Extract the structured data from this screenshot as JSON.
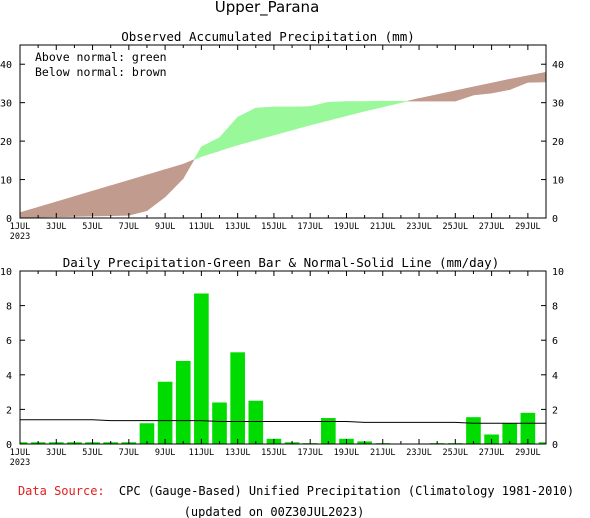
{
  "title": "Upper_Parana",
  "x_tick_labels": [
    "1JUL",
    "3JUL",
    "5JUL",
    "7JUL",
    "9JUL",
    "11JUL",
    "13JUL",
    "15JUL",
    "17JUL",
    "19JUL",
    "21JUL",
    "23JUL",
    "25JUL",
    "27JUL",
    "29JUL"
  ],
  "x_year_label": "2023",
  "colors": {
    "above": "#99f899",
    "below": "#c19b8e",
    "bar": "#00dc00",
    "line": "#000000",
    "source_label": "#e02020"
  },
  "footer": {
    "source_label": "Data Source:",
    "source_text": "CPC (Gauge-Based) Unified Precipitation (Climatology 1981-2010)",
    "updated": "(updated on 00Z30JUL2023)"
  },
  "chart_data": [
    {
      "type": "area",
      "title": "Observed Accumulated Precipitation (mm)",
      "legend": [
        "Above normal: green",
        "Below normal: brown"
      ],
      "ylim": [
        0,
        45
      ],
      "yticks": [
        0,
        10,
        20,
        30,
        40
      ],
      "x": [
        "1JUL",
        "2JUL",
        "3JUL",
        "4JUL",
        "5JUL",
        "6JUL",
        "7JUL",
        "8JUL",
        "9JUL",
        "10JUL",
        "11JUL",
        "12JUL",
        "13JUL",
        "14JUL",
        "15JUL",
        "16JUL",
        "17JUL",
        "18JUL",
        "19JUL",
        "20JUL",
        "21JUL",
        "22JUL",
        "23JUL",
        "24JUL",
        "25JUL",
        "26JUL",
        "27JUL",
        "28JUL",
        "29JUL",
        "30JUL"
      ],
      "series": [
        {
          "name": "Observed",
          "values": [
            0.1,
            0.2,
            0.3,
            0.4,
            0.5,
            0.6,
            0.7,
            1.9,
            5.5,
            10.3,
            18.5,
            20.9,
            26.2,
            28.6,
            28.9,
            28.9,
            29.0,
            30.1,
            30.3,
            30.3,
            30.4,
            30.4,
            30.4,
            30.4,
            30.4,
            32.0,
            32.5,
            33.4,
            35.3,
            35.4
          ]
        },
        {
          "name": "Normal",
          "values": [
            1.4,
            2.8,
            4.2,
            5.6,
            7.0,
            8.4,
            9.8,
            11.2,
            12.6,
            14.0,
            16.0,
            17.5,
            19.0,
            20.3,
            21.6,
            22.9,
            24.2,
            25.4,
            26.6,
            27.8,
            28.9,
            30.0,
            31.1,
            32.1,
            33.1,
            34.1,
            35.1,
            36.1,
            37.0,
            37.9
          ]
        }
      ]
    },
    {
      "type": "bar",
      "title": "Daily Precipitation-Green Bar & Normal-Solid Line (mm/day)",
      "ylim": [
        0,
        10
      ],
      "yticks": [
        0,
        2,
        4,
        6,
        8,
        10
      ],
      "x": [
        "1JUL",
        "2JUL",
        "3JUL",
        "4JUL",
        "5JUL",
        "6JUL",
        "7JUL",
        "8JUL",
        "9JUL",
        "10JUL",
        "11JUL",
        "12JUL",
        "13JUL",
        "14JUL",
        "15JUL",
        "16JUL",
        "17JUL",
        "18JUL",
        "19JUL",
        "20JUL",
        "21JUL",
        "22JUL",
        "23JUL",
        "24JUL",
        "25JUL",
        "26JUL",
        "27JUL",
        "28JUL",
        "29JUL",
        "30JUL"
      ],
      "series": [
        {
          "name": "Daily precipitation",
          "values": [
            0.1,
            0.1,
            0.1,
            0.1,
            0.1,
            0.1,
            0.1,
            1.2,
            3.6,
            4.8,
            8.7,
            2.4,
            5.3,
            2.5,
            0.3,
            0.1,
            0.05,
            1.5,
            0.3,
            0.15,
            0.05,
            0.0,
            0.0,
            0.05,
            0.05,
            1.55,
            0.55,
            1.2,
            1.8,
            0.1
          ]
        },
        {
          "name": "Normal",
          "values": [
            1.4,
            1.4,
            1.4,
            1.4,
            1.4,
            1.35,
            1.35,
            1.35,
            1.35,
            1.35,
            1.35,
            1.3,
            1.3,
            1.3,
            1.3,
            1.3,
            1.3,
            1.3,
            1.3,
            1.25,
            1.25,
            1.25,
            1.25,
            1.25,
            1.25,
            1.2,
            1.2,
            1.2,
            1.2,
            1.2
          ]
        }
      ]
    }
  ]
}
